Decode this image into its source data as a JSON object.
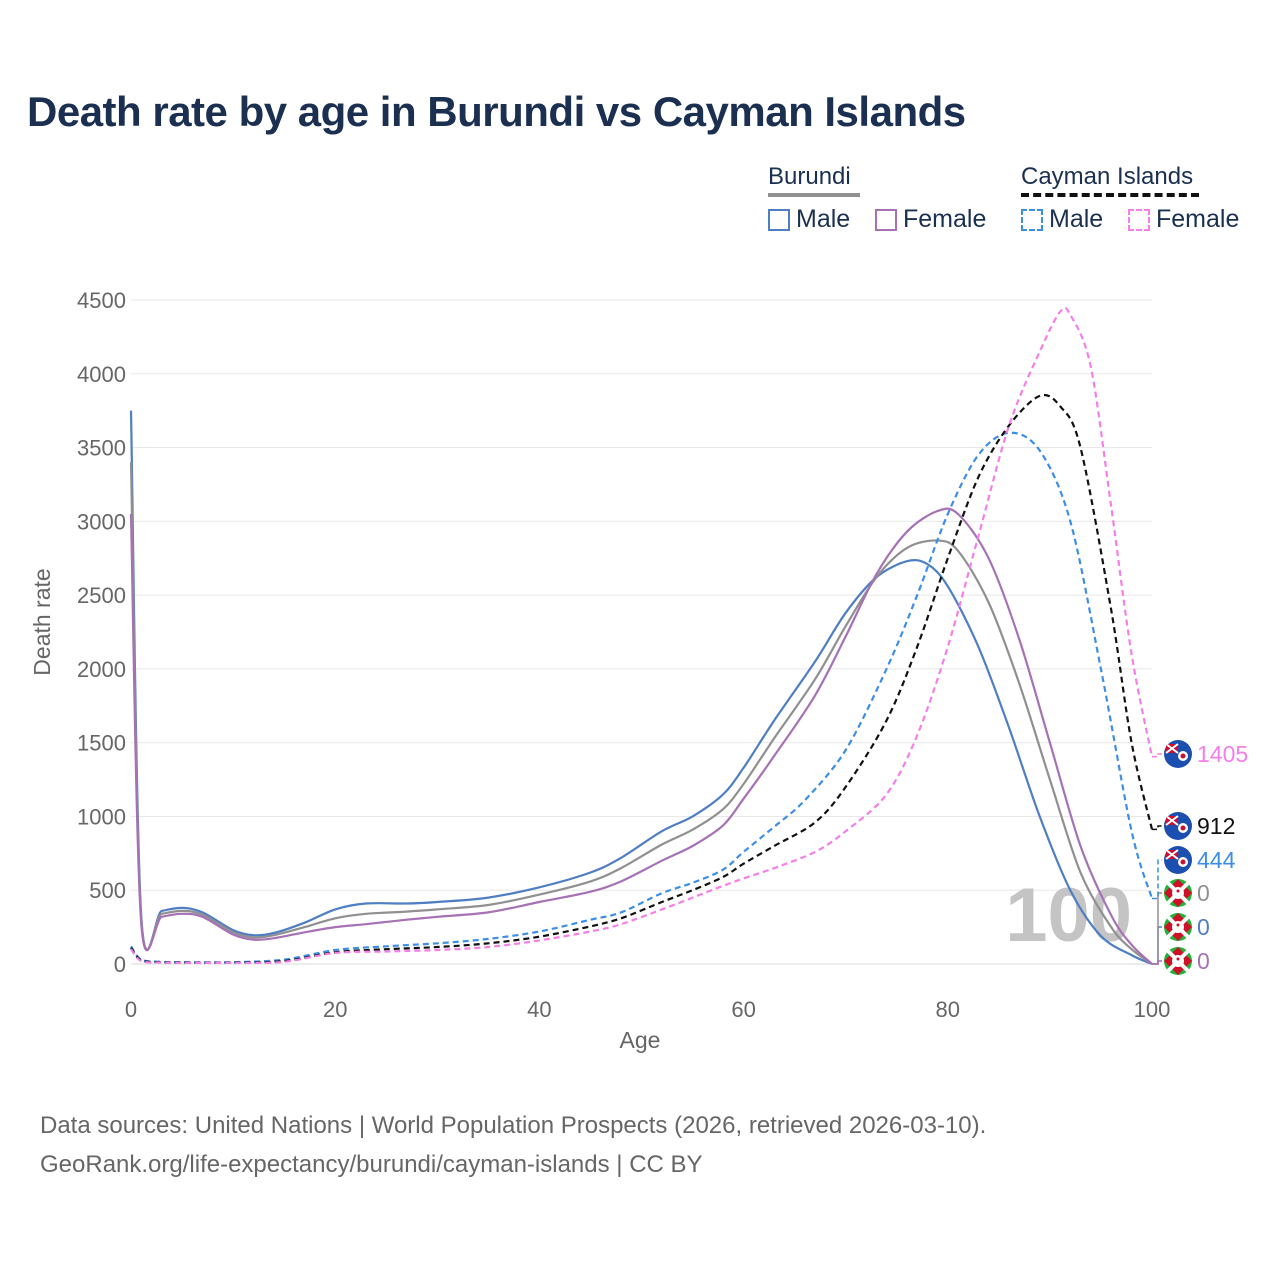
{
  "title": "Death rate by age in Burundi vs Cayman Islands",
  "legend": {
    "groups": [
      {
        "name": "Burundi",
        "line_color": "#909090",
        "line_style": "solid"
      },
      {
        "name": "Cayman Islands",
        "line_color": "#111111",
        "line_style": "dashed"
      }
    ],
    "items": [
      {
        "label": "Male",
        "color": "#4e7ec3",
        "style": "solid"
      },
      {
        "label": "Female",
        "color": "#a771b5",
        "style": "solid"
      },
      {
        "label": "Male",
        "color": "#3d8ee6",
        "style": "dashed"
      },
      {
        "label": "Female",
        "color": "#f57ee8",
        "style": "dashed"
      }
    ]
  },
  "footer": {
    "line1": "Data sources: United Nations | World Population Prospects (2026, retrieved 2026-03-10).",
    "line2": "GeoRank.org/life-expectancy/burundi/cayman-islands | CC BY"
  },
  "chart_data": {
    "type": "line",
    "title": "Death rate by age in Burundi vs Cayman Islands",
    "xlabel": "Age",
    "ylabel": "Death rate",
    "xlim": [
      0,
      100
    ],
    "ylim": [
      0,
      4500
    ],
    "x_ticks": [
      0,
      20,
      40,
      60,
      80,
      100
    ],
    "y_ticks": [
      0,
      500,
      1000,
      1500,
      2000,
      2500,
      3000,
      3500,
      4000,
      4500
    ],
    "watermark": "100",
    "series": [
      {
        "name": "Burundi Male",
        "color": "#4e7ec3",
        "dash": false,
        "points": [
          [
            0,
            3750
          ],
          [
            1,
            330
          ],
          [
            3,
            360
          ],
          [
            5,
            380
          ],
          [
            7,
            350
          ],
          [
            10,
            230
          ],
          [
            12,
            195
          ],
          [
            14,
            210
          ],
          [
            17,
            280
          ],
          [
            20,
            370
          ],
          [
            23,
            410
          ],
          [
            27,
            410
          ],
          [
            30,
            420
          ],
          [
            35,
            450
          ],
          [
            40,
            520
          ],
          [
            45,
            620
          ],
          [
            48,
            720
          ],
          [
            52,
            900
          ],
          [
            55,
            1000
          ],
          [
            58,
            1150
          ],
          [
            60,
            1330
          ],
          [
            63,
            1650
          ],
          [
            67,
            2050
          ],
          [
            70,
            2380
          ],
          [
            73,
            2620
          ],
          [
            76,
            2730
          ],
          [
            78,
            2710
          ],
          [
            80,
            2560
          ],
          [
            83,
            2150
          ],
          [
            86,
            1600
          ],
          [
            89,
            1000
          ],
          [
            92,
            500
          ],
          [
            95,
            190
          ],
          [
            98,
            60
          ],
          [
            100,
            0
          ]
        ],
        "end_value": "0",
        "end_flag": "burundi"
      },
      {
        "name": "Burundi Total",
        "color": "#909090",
        "dash": false,
        "points": [
          [
            0,
            3400
          ],
          [
            1,
            310
          ],
          [
            3,
            340
          ],
          [
            5,
            360
          ],
          [
            7,
            335
          ],
          [
            10,
            215
          ],
          [
            12,
            180
          ],
          [
            14,
            195
          ],
          [
            17,
            250
          ],
          [
            20,
            310
          ],
          [
            23,
            340
          ],
          [
            27,
            355
          ],
          [
            30,
            370
          ],
          [
            35,
            400
          ],
          [
            40,
            470
          ],
          [
            45,
            560
          ],
          [
            48,
            650
          ],
          [
            52,
            810
          ],
          [
            55,
            910
          ],
          [
            58,
            1050
          ],
          [
            60,
            1220
          ],
          [
            63,
            1530
          ],
          [
            67,
            1930
          ],
          [
            70,
            2290
          ],
          [
            73,
            2620
          ],
          [
            76,
            2820
          ],
          [
            79,
            2870
          ],
          [
            81,
            2800
          ],
          [
            84,
            2450
          ],
          [
            87,
            1900
          ],
          [
            90,
            1250
          ],
          [
            93,
            620
          ],
          [
            96,
            250
          ],
          [
            98,
            100
          ],
          [
            100,
            0
          ]
        ],
        "end_value": "0",
        "end_flag": "burundi"
      },
      {
        "name": "Burundi Female",
        "color": "#a771b5",
        "dash": false,
        "points": [
          [
            0,
            3050
          ],
          [
            1,
            280
          ],
          [
            3,
            320
          ],
          [
            5,
            340
          ],
          [
            7,
            320
          ],
          [
            10,
            200
          ],
          [
            12,
            165
          ],
          [
            14,
            175
          ],
          [
            17,
            215
          ],
          [
            20,
            250
          ],
          [
            23,
            270
          ],
          [
            27,
            300
          ],
          [
            30,
            320
          ],
          [
            35,
            350
          ],
          [
            40,
            420
          ],
          [
            45,
            490
          ],
          [
            48,
            560
          ],
          [
            52,
            700
          ],
          [
            55,
            800
          ],
          [
            58,
            940
          ],
          [
            60,
            1120
          ],
          [
            63,
            1410
          ],
          [
            67,
            1820
          ],
          [
            70,
            2220
          ],
          [
            73,
            2640
          ],
          [
            76,
            2930
          ],
          [
            79,
            3070
          ],
          [
            81,
            3050
          ],
          [
            84,
            2750
          ],
          [
            87,
            2200
          ],
          [
            90,
            1500
          ],
          [
            93,
            800
          ],
          [
            96,
            330
          ],
          [
            98,
            130
          ],
          [
            100,
            0
          ]
        ],
        "end_value": "0",
        "end_flag": "burundi"
      },
      {
        "name": "Cayman Islands Male",
        "color": "#3d8ee6",
        "dash": true,
        "points": [
          [
            0,
            120
          ],
          [
            1,
            30
          ],
          [
            3,
            15
          ],
          [
            5,
            12
          ],
          [
            10,
            12
          ],
          [
            15,
            30
          ],
          [
            20,
            95
          ],
          [
            25,
            120
          ],
          [
            30,
            140
          ],
          [
            35,
            170
          ],
          [
            40,
            220
          ],
          [
            45,
            300
          ],
          [
            48,
            350
          ],
          [
            52,
            480
          ],
          [
            55,
            550
          ],
          [
            58,
            640
          ],
          [
            60,
            760
          ],
          [
            63,
            930
          ],
          [
            66,
            1110
          ],
          [
            70,
            1450
          ],
          [
            74,
            2000
          ],
          [
            77,
            2500
          ],
          [
            80,
            3050
          ],
          [
            83,
            3450
          ],
          [
            86,
            3600
          ],
          [
            89,
            3480
          ],
          [
            92,
            3000
          ],
          [
            95,
            2000
          ],
          [
            98,
            900
          ],
          [
            100,
            444
          ]
        ],
        "end_value": "444",
        "end_flag": "cayman"
      },
      {
        "name": "Cayman Islands Total",
        "color": "#111111",
        "dash": true,
        "points": [
          [
            0,
            110
          ],
          [
            1,
            25
          ],
          [
            3,
            12
          ],
          [
            5,
            10
          ],
          [
            10,
            10
          ],
          [
            15,
            20
          ],
          [
            20,
            80
          ],
          [
            25,
            100
          ],
          [
            30,
            115
          ],
          [
            35,
            140
          ],
          [
            40,
            185
          ],
          [
            45,
            255
          ],
          [
            48,
            310
          ],
          [
            52,
            420
          ],
          [
            55,
            500
          ],
          [
            58,
            590
          ],
          [
            60,
            680
          ],
          [
            63,
            800
          ],
          [
            67,
            960
          ],
          [
            70,
            1200
          ],
          [
            74,
            1650
          ],
          [
            77,
            2150
          ],
          [
            80,
            2750
          ],
          [
            83,
            3300
          ],
          [
            86,
            3650
          ],
          [
            89,
            3850
          ],
          [
            91,
            3780
          ],
          [
            93,
            3500
          ],
          [
            96,
            2400
          ],
          [
            98,
            1500
          ],
          [
            100,
            912
          ]
        ],
        "end_value": "912",
        "end_flag": "cayman"
      },
      {
        "name": "Cayman Islands Female",
        "color": "#f57ee8",
        "dash": true,
        "points": [
          [
            0,
            100
          ],
          [
            1,
            20
          ],
          [
            3,
            10
          ],
          [
            5,
            8
          ],
          [
            10,
            8
          ],
          [
            15,
            15
          ],
          [
            20,
            75
          ],
          [
            25,
            85
          ],
          [
            30,
            95
          ],
          [
            35,
            115
          ],
          [
            40,
            160
          ],
          [
            45,
            220
          ],
          [
            48,
            270
          ],
          [
            52,
            370
          ],
          [
            55,
            450
          ],
          [
            58,
            530
          ],
          [
            60,
            580
          ],
          [
            63,
            650
          ],
          [
            67,
            760
          ],
          [
            70,
            900
          ],
          [
            74,
            1150
          ],
          [
            77,
            1550
          ],
          [
            80,
            2150
          ],
          [
            83,
            2900
          ],
          [
            86,
            3650
          ],
          [
            89,
            4150
          ],
          [
            91,
            4420
          ],
          [
            92,
            4400
          ],
          [
            94,
            4050
          ],
          [
            96,
            3100
          ],
          [
            98,
            2100
          ],
          [
            100,
            1405
          ]
        ],
        "end_value": "1405",
        "end_flag": "cayman"
      }
    ]
  }
}
